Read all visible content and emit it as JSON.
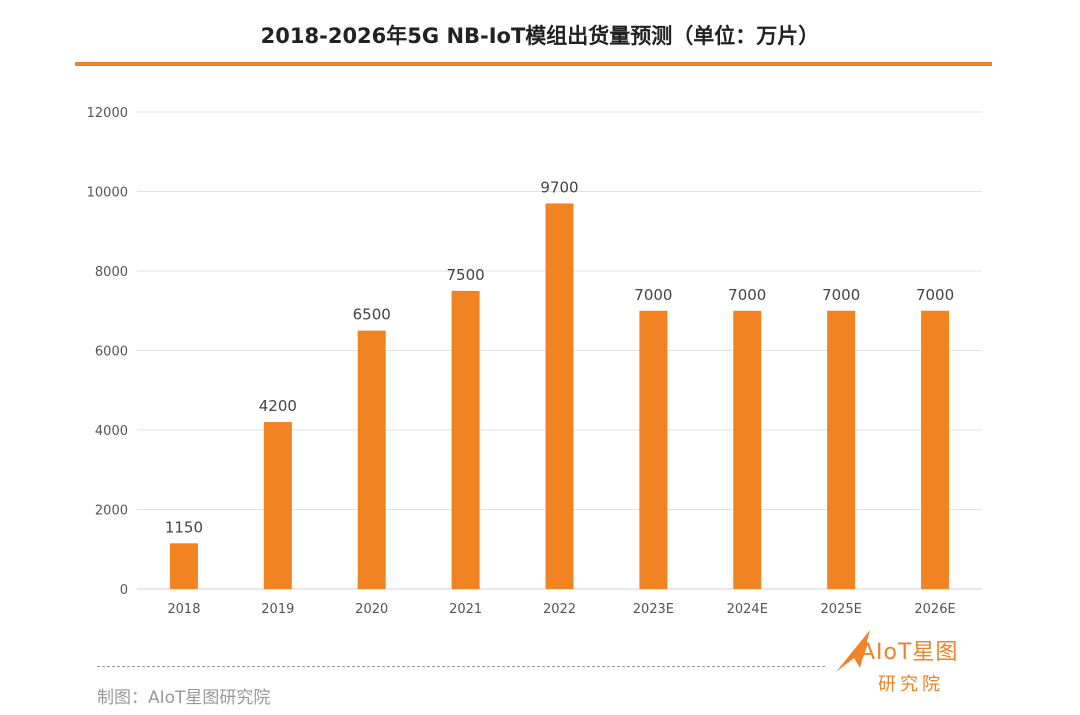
{
  "chart_data": {
    "type": "bar",
    "title": "2018-2026年5G NB-IoT模组出货量预测（单位：万片）",
    "categories": [
      "2018",
      "2019",
      "2020",
      "2021",
      "2022",
      "2023E",
      "2024E",
      "2025E",
      "2026E"
    ],
    "values": [
      1150,
      4200,
      6500,
      7500,
      9700,
      7000,
      7000,
      7000,
      7000
    ],
    "data_labels": [
      "1150",
      "4200",
      "6500",
      "7500",
      "9700",
      "7000",
      "7000",
      "7000",
      "7000"
    ],
    "ylim": [
      0,
      12000
    ],
    "yticks": [
      "0",
      "2000",
      "4000",
      "6000",
      "8000",
      "10000",
      "12000"
    ],
    "xlabel": "",
    "ylabel": "",
    "grid": true,
    "bar_color": "#f28322"
  },
  "footer": {
    "credit": "制图：AIoT星图研究院",
    "logo_text": "AIoT星图",
    "logo_sub": "研究院"
  }
}
